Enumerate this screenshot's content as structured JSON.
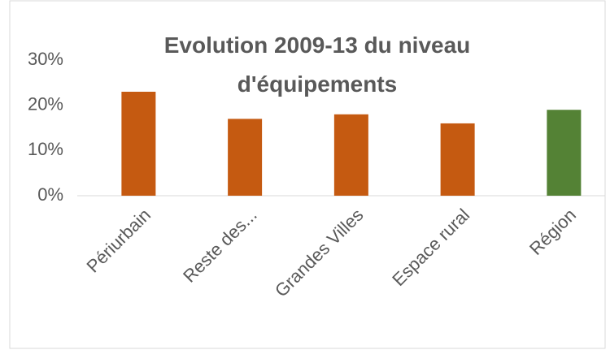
{
  "chart_data": {
    "type": "bar",
    "title": "Evolution 2009-13 du niveau d'équipements",
    "categories": [
      "Périurbain",
      "Reste des...",
      "Grandes Villes",
      "Espace rural",
      "Région"
    ],
    "values": [
      23,
      17,
      18,
      16,
      19
    ],
    "colors": [
      "#c55a11",
      "#c55a11",
      "#c55a11",
      "#c55a11",
      "#548235"
    ],
    "ylim": [
      0,
      30
    ],
    "yticks": [
      {
        "value": 0,
        "label": "0%"
      },
      {
        "value": 10,
        "label": "10%"
      },
      {
        "value": 20,
        "label": "20%"
      },
      {
        "value": 30,
        "label": "30%"
      }
    ],
    "grid": false
  }
}
